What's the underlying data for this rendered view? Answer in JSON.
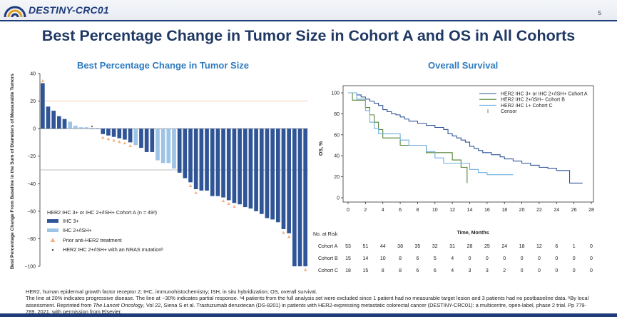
{
  "header": {
    "study_name": "DESTINY-CRC01",
    "page_number": "5",
    "colors": {
      "brand": "#1f3c7a",
      "logo_gold": "#e0a020",
      "logo_blue": "#1f3c7a"
    }
  },
  "title": "Best Percentage Change in Tumor Size in Cohort A and OS in All Cohorts",
  "left_panel": {
    "title": "Best Percentage Change in Tumor Size",
    "legend": {
      "heading": "HER2 IHC 3+ or IHC 2+/ISH+ Cohort A (n = 49ᵃ)",
      "items": [
        {
          "label": "IHC 3+",
          "color": "#2f5597"
        },
        {
          "label": "IHC 2+/ISH+",
          "color": "#9dc3e6"
        },
        {
          "label": "Prior anti-HER2 treatment",
          "color": "#f4b183"
        },
        {
          "label": "HER2 IHC 2+/ISH+ with an NRAS mutationᵇ",
          "color": "#555555"
        }
      ]
    }
  },
  "right_panel": {
    "title": "Overall Survival"
  },
  "chart_data": [
    {
      "type": "bar",
      "title": "Best Percentage Change in Tumor Size",
      "ylabel": "Best Percentage Change From Baseline in the Sum of Diameters of Measurable Tumors",
      "ylim": [
        -100,
        40
      ],
      "yticks": [
        "40",
        "20",
        "0",
        "−20",
        "−40",
        "−60",
        "−80",
        "−100"
      ],
      "ytick_values": [
        40,
        20,
        0,
        -20,
        -40,
        -60,
        -80,
        -100
      ],
      "reference_lines": [
        20,
        -30
      ],
      "series": [
        {
          "name": "",
          "values": [
            33,
            16,
            13,
            9,
            7,
            5,
            2,
            1,
            1,
            0,
            0,
            -4,
            -5,
            -6,
            -7,
            -8,
            -10,
            -12,
            -14,
            -17,
            -17,
            -23,
            -25,
            -25,
            -29,
            -32,
            -36,
            -39,
            -44,
            -45,
            -45,
            -49,
            -49,
            -50,
            -52,
            -54,
            -55,
            -57,
            -58,
            -60,
            -62,
            -65,
            -66,
            -68,
            -73,
            -76,
            -100,
            -100,
            -100
          ],
          "subgroup": [
            "IHC 3+",
            "IHC 3+",
            "IHC 3+",
            "IHC 3+",
            "IHC 3+",
            "IHC 2+/ISH+",
            "IHC 2+/ISH+",
            "IHC 2+/ISH+",
            "IHC 2+/ISH+",
            "IHC 3+",
            "IHC 3+",
            "IHC 3+",
            "IHC 3+",
            "IHC 3+",
            "IHC 3+",
            "IHC 3+",
            "IHC 3+",
            "IHC 2+/ISH+",
            "IHC 3+",
            "IHC 3+",
            "IHC 3+",
            "IHC 2+/ISH+",
            "IHC 2+/ISH+",
            "IHC 2+/ISH+",
            "IHC 2+/ISH+",
            "IHC 3+",
            "IHC 3+",
            "IHC 3+",
            "IHC 3+",
            "IHC 3+",
            "IHC 3+",
            "IHC 3+",
            "IHC 3+",
            "IHC 3+",
            "IHC 3+",
            "IHC 3+",
            "IHC 3+",
            "IHC 3+",
            "IHC 3+",
            "IHC 3+",
            "IHC 3+",
            "IHC 3+",
            "IHC 3+",
            "IHC 3+",
            "IHC 3+",
            "IHC 3+",
            "IHC 3+",
            "IHC 3+",
            "IHC 3+"
          ],
          "prior_anti_her2": [
            0,
            11,
            12,
            13,
            14,
            15,
            16,
            27,
            28,
            33,
            34,
            35,
            44,
            45,
            48
          ],
          "nras_mutation": [
            9
          ]
        }
      ]
    },
    {
      "type": "line",
      "title": "Overall Survival",
      "xlabel": "Time, Months",
      "ylabel": "OS, %",
      "xlim": [
        0,
        28
      ],
      "ylim": [
        0,
        100
      ],
      "xticks": [
        0,
        2,
        4,
        6,
        8,
        10,
        12,
        14,
        16,
        18,
        20,
        22,
        24,
        26,
        28
      ],
      "yticks": [
        0,
        20,
        40,
        60,
        80,
        100
      ],
      "legend_position": "top-right",
      "series": [
        {
          "name": "HER2 IHC 3+ or IHC 2+/ISH+ Cohort A",
          "color": "#2f5597",
          "x": [
            0,
            1,
            1.5,
            2,
            2.5,
            3,
            3.5,
            4,
            4.5,
            5,
            5.5,
            6,
            6.5,
            7,
            7.5,
            8,
            8.5,
            9,
            9.5,
            10,
            10.5,
            11,
            11.5,
            12,
            12.5,
            13,
            13.5,
            14,
            14.5,
            15,
            15.5,
            16,
            16.5,
            17,
            17.5,
            18,
            18.5,
            19,
            19.5,
            20,
            20.5,
            21,
            21.5,
            22,
            22.5,
            23,
            23.5,
            24,
            25,
            25.5,
            26,
            27
          ],
          "y": [
            100,
            98,
            96,
            94,
            92,
            90,
            88,
            84,
            82,
            80,
            79,
            77,
            75,
            73,
            73,
            71,
            71,
            69,
            69,
            67,
            67,
            65,
            61,
            59,
            57,
            55,
            53,
            49,
            47,
            45,
            43,
            43,
            41,
            41,
            39,
            37,
            37,
            35,
            35,
            33,
            33,
            31,
            31,
            29,
            29,
            28,
            28,
            26,
            26,
            14,
            14,
            14
          ]
        },
        {
          "name": "HER2 IHC 2+/ISH− Cohort B",
          "color": "#548235",
          "x": [
            0,
            0.5,
            1.5,
            2,
            2.5,
            3,
            3.5,
            4,
            4.5,
            6,
            7.5,
            9,
            10.5,
            12,
            13,
            13.5,
            13.7
          ],
          "y": [
            100,
            93,
            93,
            86,
            79,
            72,
            65,
            57,
            57,
            50,
            50,
            43,
            43,
            36,
            29,
            29,
            14
          ]
        },
        {
          "name": "HER2 IHC 1+ Cohort C",
          "color": "#6fb0e0",
          "x": [
            0,
            1,
            2,
            2.5,
            3,
            3.5,
            4,
            5,
            6,
            7,
            8,
            9,
            10,
            11,
            12,
            13,
            14,
            15,
            16,
            17,
            18,
            19
          ],
          "y": [
            100,
            94,
            83,
            72,
            66,
            61,
            61,
            61,
            55,
            50,
            50,
            44,
            38,
            33,
            33,
            33,
            27,
            24,
            22,
            22,
            22,
            22
          ]
        },
        {
          "name": "Censor",
          "color": "#555555",
          "x": [],
          "y": []
        }
      ],
      "at_risk": {
        "header": "No. at Risk",
        "rows": [
          {
            "label": "Cohort A",
            "values": [
              "53",
              "51",
              "44",
              "38",
              "35",
              "32",
              "31",
              "28",
              "25",
              "24",
              "18",
              "12",
              "6",
              "1",
              "0"
            ]
          },
          {
            "label": "Cohort B",
            "values": [
              "15",
              "14",
              "10",
              "8",
              "6",
              "5",
              "4",
              "0",
              "0",
              "0",
              "0",
              "0",
              "0",
              "0",
              "0"
            ]
          },
          {
            "label": "Cohort C",
            "values": [
              "18",
              "15",
              "8",
              "8",
              "6",
              "6",
              "4",
              "3",
              "3",
              "2",
              "0",
              "0",
              "0",
              "0",
              "0"
            ]
          }
        ]
      }
    }
  ],
  "footnote": {
    "line1": "HER2, human epidermal growth factor receptor 2; IHC, immunohistochemistry; ISH, in situ hybridization; OS, overall survival.",
    "line2": "The line at 20% indicates progressive disease. The line at −30% indicates partial response. ᵃ4 patients from the full analysis set were excluded since 1 patient had no measurable target lesion and 3 patients had no postbaseline data. ᵇBy local assessment. Reprinted from ",
    "journal": "The Lancet Oncology",
    "line3": ", Vol 22, Siena S et al. Trastuzumab deruxtecan (DS-8201) in patients with HER2-expressing metastatic colorectal cancer (DESTINY-CRC01): a multicentre, open-label, phase 2 trial. Pp 779-789, 2021, with permission from Elsevier."
  }
}
